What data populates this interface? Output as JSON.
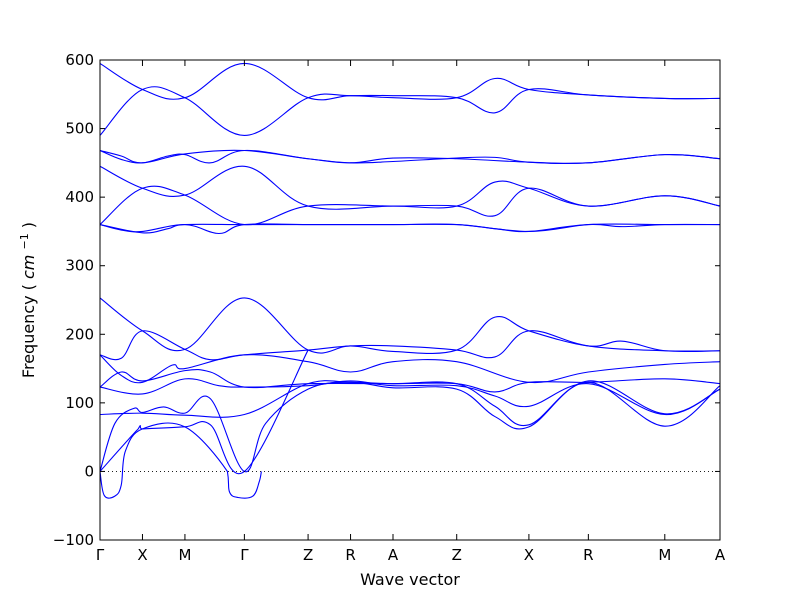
{
  "chart_data": {
    "type": "line",
    "title": "",
    "xlabel": "Wave vector",
    "ylabel": "Frequency",
    "ylabel_unit": "cm",
    "ylabel_unit_exp": "−1",
    "ylim": [
      -100,
      600
    ],
    "yticks": [
      -100,
      0,
      100,
      200,
      300,
      400,
      500,
      600
    ],
    "xlim": [
      0,
      14.6
    ],
    "high_symmetry_points": [
      {
        "label": "Γ",
        "x": 0
      },
      {
        "label": "X",
        "x": 1
      },
      {
        "label": "M",
        "x": 2
      },
      {
        "label": "Γ",
        "x": 3.4
      },
      {
        "label": "Z",
        "x": 4.9
      },
      {
        "label": "R",
        "x": 5.9
      },
      {
        "label": "A",
        "x": 6.9
      },
      {
        "label": "Z",
        "x": 8.4
      },
      {
        "label": "X",
        "x": 10.1
      },
      {
        "label": "R",
        "x": 11.5
      },
      {
        "label": "M",
        "x": 13.3
      },
      {
        "label": "A",
        "x": 14.6
      }
    ],
    "zero_line": {
      "y": 0,
      "style": "dotted"
    },
    "line_color": "#0000ff",
    "series": [
      {
        "points": [
          [
            0,
            595
          ],
          [
            1,
            557
          ],
          [
            2,
            545
          ],
          [
            3.4,
            595
          ],
          [
            4.9,
            545
          ],
          [
            5.9,
            548
          ],
          [
            6.9,
            545
          ],
          [
            8.4,
            545
          ],
          [
            9.3,
            573
          ],
          [
            10.1,
            557
          ],
          [
            11.5,
            549
          ],
          [
            13.3,
            544
          ],
          [
            14.6,
            544
          ]
        ]
      },
      {
        "points": [
          [
            0,
            490
          ],
          [
            1,
            557
          ],
          [
            2,
            545
          ],
          [
            3.4,
            490
          ],
          [
            4.9,
            545
          ],
          [
            5.9,
            548
          ],
          [
            6.9,
            548
          ],
          [
            8.4,
            545
          ],
          [
            9.3,
            523
          ],
          [
            10.1,
            557
          ],
          [
            11.5,
            549
          ],
          [
            13.3,
            544
          ],
          [
            14.6,
            544
          ]
        ]
      },
      {
        "points": [
          [
            0,
            468
          ],
          [
            0.5,
            460
          ],
          [
            1,
            450
          ],
          [
            2,
            463
          ],
          [
            3.4,
            468
          ],
          [
            4.9,
            456
          ],
          [
            5.9,
            450
          ],
          [
            6.9,
            457
          ],
          [
            8.4,
            456
          ],
          [
            10.1,
            451
          ],
          [
            11.5,
            450
          ],
          [
            13.3,
            462
          ],
          [
            14.6,
            456
          ]
        ]
      },
      {
        "points": [
          [
            0,
            468
          ],
          [
            0.5,
            455
          ],
          [
            1,
            450
          ],
          [
            1.6,
            460
          ],
          [
            2,
            462
          ],
          [
            2.6,
            450
          ],
          [
            3.4,
            468
          ],
          [
            4.9,
            456
          ],
          [
            5.9,
            450
          ],
          [
            6.9,
            452
          ],
          [
            8.4,
            457
          ],
          [
            9.3,
            458
          ],
          [
            10.1,
            451
          ],
          [
            11.5,
            450
          ],
          [
            13.3,
            462
          ],
          [
            14.6,
            456
          ]
        ]
      },
      {
        "points": [
          [
            0,
            445
          ],
          [
            1,
            413
          ],
          [
            2,
            403
          ],
          [
            3.4,
            445
          ],
          [
            4.9,
            387
          ],
          [
            6.9,
            387
          ],
          [
            8.4,
            387
          ],
          [
            9.3,
            422
          ],
          [
            10.1,
            413
          ],
          [
            11.5,
            387
          ],
          [
            13.3,
            402
          ],
          [
            14.6,
            387
          ]
        ]
      },
      {
        "points": [
          [
            0,
            360
          ],
          [
            1,
            413
          ],
          [
            2,
            403
          ],
          [
            3.4,
            360
          ],
          [
            4.9,
            387
          ],
          [
            6.9,
            387
          ],
          [
            8.4,
            387
          ],
          [
            9.3,
            373
          ],
          [
            10.1,
            413
          ],
          [
            11.5,
            387
          ],
          [
            13.3,
            402
          ],
          [
            14.6,
            387
          ]
        ]
      },
      {
        "points": [
          [
            0,
            360
          ],
          [
            0.5,
            352
          ],
          [
            1,
            350
          ],
          [
            2,
            360
          ],
          [
            2.8,
            347
          ],
          [
            3.4,
            360
          ],
          [
            4.9,
            360
          ],
          [
            6.9,
            360
          ],
          [
            8.4,
            360
          ],
          [
            10.1,
            350
          ],
          [
            11.5,
            360
          ],
          [
            12.3,
            357
          ],
          [
            13.3,
            360
          ],
          [
            14.6,
            360
          ]
        ]
      },
      {
        "points": [
          [
            0,
            360
          ],
          [
            1,
            348
          ],
          [
            1.6,
            354
          ],
          [
            2,
            360
          ],
          [
            3.4,
            360
          ],
          [
            4.9,
            360
          ],
          [
            6.9,
            360
          ],
          [
            8.4,
            360
          ],
          [
            9.3,
            354
          ],
          [
            10.1,
            350
          ],
          [
            11.5,
            360
          ],
          [
            13.3,
            360
          ],
          [
            14.6,
            360
          ]
        ]
      },
      {
        "points": [
          [
            0,
            253
          ],
          [
            1,
            205
          ],
          [
            2,
            178
          ],
          [
            3.4,
            253
          ],
          [
            4.9,
            177
          ],
          [
            5.9,
            183
          ],
          [
            6.9,
            175
          ],
          [
            8.4,
            177
          ],
          [
            9.3,
            225
          ],
          [
            10.1,
            205
          ],
          [
            11.5,
            183
          ],
          [
            12.3,
            190
          ],
          [
            13.3,
            176
          ],
          [
            14.6,
            176
          ]
        ]
      },
      {
        "points": [
          [
            0,
            170
          ],
          [
            0.5,
            165
          ],
          [
            1,
            205
          ],
          [
            2,
            178
          ],
          [
            2.6,
            163
          ],
          [
            3.4,
            170
          ],
          [
            4.9,
            177
          ],
          [
            5.9,
            183
          ],
          [
            6.9,
            183
          ],
          [
            8.4,
            177
          ],
          [
            9.3,
            167
          ],
          [
            10.1,
            205
          ],
          [
            11.5,
            183
          ],
          [
            13.3,
            176
          ],
          [
            14.6,
            176
          ]
        ]
      },
      {
        "points": [
          [
            0,
            170
          ],
          [
            0.5,
            140
          ],
          [
            1,
            130
          ],
          [
            1.7,
            155
          ],
          [
            2,
            150
          ],
          [
            3.4,
            170
          ],
          [
            4.9,
            160
          ],
          [
            5.9,
            145
          ],
          [
            6.9,
            160
          ],
          [
            8.4,
            160
          ],
          [
            10.1,
            130
          ],
          [
            11.5,
            145
          ],
          [
            13.3,
            156
          ],
          [
            14.6,
            160
          ]
        ]
      },
      {
        "points": [
          [
            0,
            123
          ],
          [
            0.5,
            145
          ],
          [
            1,
            132
          ],
          [
            2,
            147
          ],
          [
            2.6,
            145
          ],
          [
            3.4,
            123
          ],
          [
            4.9,
            128
          ],
          [
            6.9,
            128
          ],
          [
            8.4,
            128
          ],
          [
            9.3,
            116
          ],
          [
            10.1,
            130
          ],
          [
            11.5,
            130
          ],
          [
            13.3,
            135
          ],
          [
            14.6,
            128
          ]
        ]
      },
      {
        "points": [
          [
            0,
            123
          ],
          [
            1,
            113
          ],
          [
            2,
            135
          ],
          [
            2.8,
            125
          ],
          [
            3.4,
            123
          ],
          [
            4.9,
            125
          ],
          [
            5.9,
            132
          ],
          [
            6.9,
            125
          ],
          [
            8.4,
            125
          ],
          [
            9.3,
            110
          ],
          [
            10.1,
            95
          ],
          [
            11.5,
            128
          ],
          [
            13.3,
            83
          ],
          [
            14.6,
            120
          ]
        ]
      },
      {
        "points": [
          [
            0,
            83
          ],
          [
            1,
            85
          ],
          [
            2,
            82
          ],
          [
            3.4,
            83
          ],
          [
            4.9,
            128
          ],
          [
            5.9,
            130
          ],
          [
            6.9,
            128
          ],
          [
            8.4,
            128
          ],
          [
            9.3,
            95
          ],
          [
            10.1,
            68
          ],
          [
            11.5,
            130
          ],
          [
            13.3,
            66
          ],
          [
            14.6,
            125
          ]
        ]
      },
      {
        "points": [
          [
            0,
            0
          ],
          [
            0.35,
            70
          ],
          [
            0.8,
            92
          ],
          [
            1,
            86
          ],
          [
            1.5,
            94
          ],
          [
            2,
            85
          ],
          [
            2.6,
            106
          ],
          [
            3.4,
            0
          ],
          [
            3.9,
            70
          ],
          [
            4.9,
            120
          ],
          [
            5.9,
            130
          ],
          [
            6.9,
            122
          ],
          [
            8.4,
            120
          ],
          [
            9.3,
            80
          ],
          [
            10.1,
            65
          ],
          [
            11.5,
            132
          ],
          [
            13.3,
            84
          ],
          [
            14.6,
            120
          ]
        ]
      },
      {
        "points": [
          [
            0,
            0
          ],
          [
            0.9,
            62
          ],
          [
            1,
            62
          ],
          [
            2,
            65
          ],
          [
            2.6,
            68
          ],
          [
            3.4,
            0
          ],
          [
            4.9,
            177
          ]
        ]
      },
      {
        "points": [
          [
            0,
            0
          ],
          [
            0.1,
            -35
          ],
          [
            0.35,
            -36
          ],
          [
            0.5,
            -20
          ],
          [
            0.6,
            30
          ],
          [
            1,
            62
          ],
          [
            2,
            65
          ],
          [
            3.0,
            0
          ],
          [
            3.05,
            -30
          ],
          [
            3.25,
            -38
          ],
          [
            3.6,
            -36
          ],
          [
            3.75,
            -15
          ],
          [
            3.8,
            0
          ]
        ]
      }
    ]
  }
}
